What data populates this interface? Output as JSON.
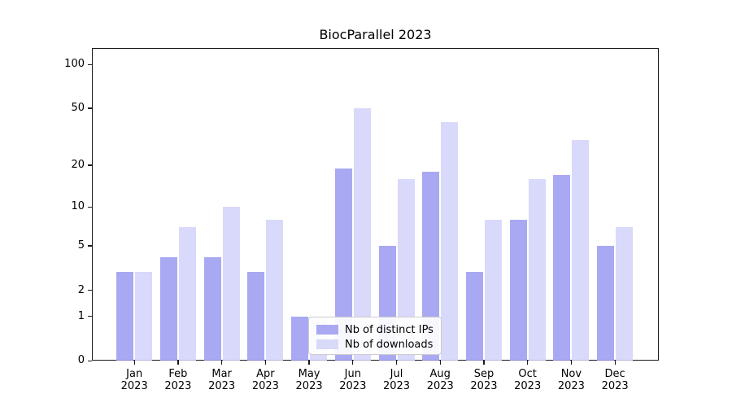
{
  "figure": {
    "title": "BiocParallel 2023"
  },
  "legend": {
    "items": [
      {
        "label": "Nb of distinct IPs",
        "color": "#a9a9f3"
      },
      {
        "label": "Nb of downloads",
        "color": "#d9d9f8"
      }
    ]
  },
  "chart_data": {
    "type": "bar",
    "title": "BiocParallel 2023",
    "categories": [
      "Jan",
      "Feb",
      "Mar",
      "Apr",
      "May",
      "Jun",
      "Jul",
      "Aug",
      "Sep",
      "Oct",
      "Nov",
      "Dec"
    ],
    "year": "2023",
    "series": [
      {
        "name": "Nb of distinct IPs",
        "color_solid": "#a9a9f3",
        "color_rgba": "rgba(154,154,241,0.85)",
        "values": [
          3,
          4,
          4,
          3,
          1,
          19,
          5,
          18,
          3,
          8,
          17,
          5
        ]
      },
      {
        "name": "Nb of downloads",
        "color_solid": "#d9d9f8",
        "color_rgba": "rgba(210,210,250,0.85)",
        "values": [
          3,
          7,
          10,
          8,
          1,
          50,
          16,
          40,
          8,
          16,
          30,
          7
        ]
      }
    ],
    "y_scale": "log1p",
    "y_ticks": [
      0,
      1,
      2,
      5,
      10,
      20,
      50,
      100
    ],
    "y_minor_gridlines": [
      3,
      4,
      6,
      7,
      8,
      9,
      30,
      40,
      60,
      70,
      80,
      90
    ],
    "emphasized_gridline": 1,
    "grid": true,
    "legend_position": "lower center inside",
    "note": "May 'Nb of downloads' bar (value 1) is hidden behind the legend box",
    "xlabel": "",
    "ylabel": ""
  }
}
